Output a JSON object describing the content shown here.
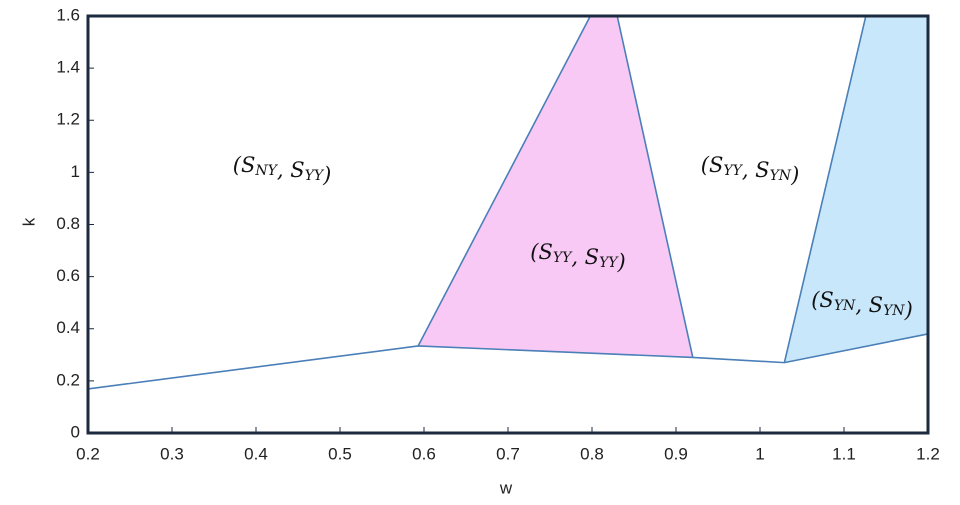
{
  "chart_data": {
    "type": "region",
    "xlabel": "w",
    "ylabel": "k",
    "xlim": [
      0.2,
      1.2
    ],
    "ylim": [
      0,
      1.6
    ],
    "xticks": [
      0.2,
      0.3,
      0.4,
      0.5,
      0.6,
      0.7,
      0.8,
      0.9,
      1,
      1.1,
      1.2
    ],
    "yticks": [
      0,
      0.2,
      0.4,
      0.6,
      0.8,
      1,
      1.2,
      1.4,
      1.6
    ],
    "regions": [
      {
        "color": "#f9c9f6",
        "x": [
          0.593,
          0.798,
          0.83,
          0.92
        ],
        "y": [
          0.334,
          1.6,
          1.6,
          0.29
        ]
      },
      {
        "color": "#c9e7fb",
        "x": [
          1.029,
          1.126,
          1.2,
          1.2
        ],
        "y": [
          0.27,
          1.6,
          1.6,
          0.38
        ]
      }
    ],
    "series": [
      {
        "color": "#4a7fb8",
        "x": [
          0.2,
          0.593,
          0.92,
          1.029,
          1.2
        ],
        "y": [
          0.169,
          0.334,
          0.29,
          0.27,
          0.38
        ]
      },
      {
        "color": "#4a7fb8",
        "x": [
          0.593,
          0.798
        ],
        "y": [
          0.334,
          1.6
        ]
      },
      {
        "color": "#4a7fb8",
        "x": [
          0.83,
          0.92
        ],
        "y": [
          1.6,
          0.29
        ]
      },
      {
        "color": "#4a7fb8",
        "x": [
          1.029,
          1.126
        ],
        "y": [
          0.27,
          1.6
        ]
      }
    ],
    "annotations": [
      "(SNY, SYY)",
      "(SYY, SYY)",
      "(SYY, SYN)",
      "(SYN, SYN)"
    ]
  }
}
